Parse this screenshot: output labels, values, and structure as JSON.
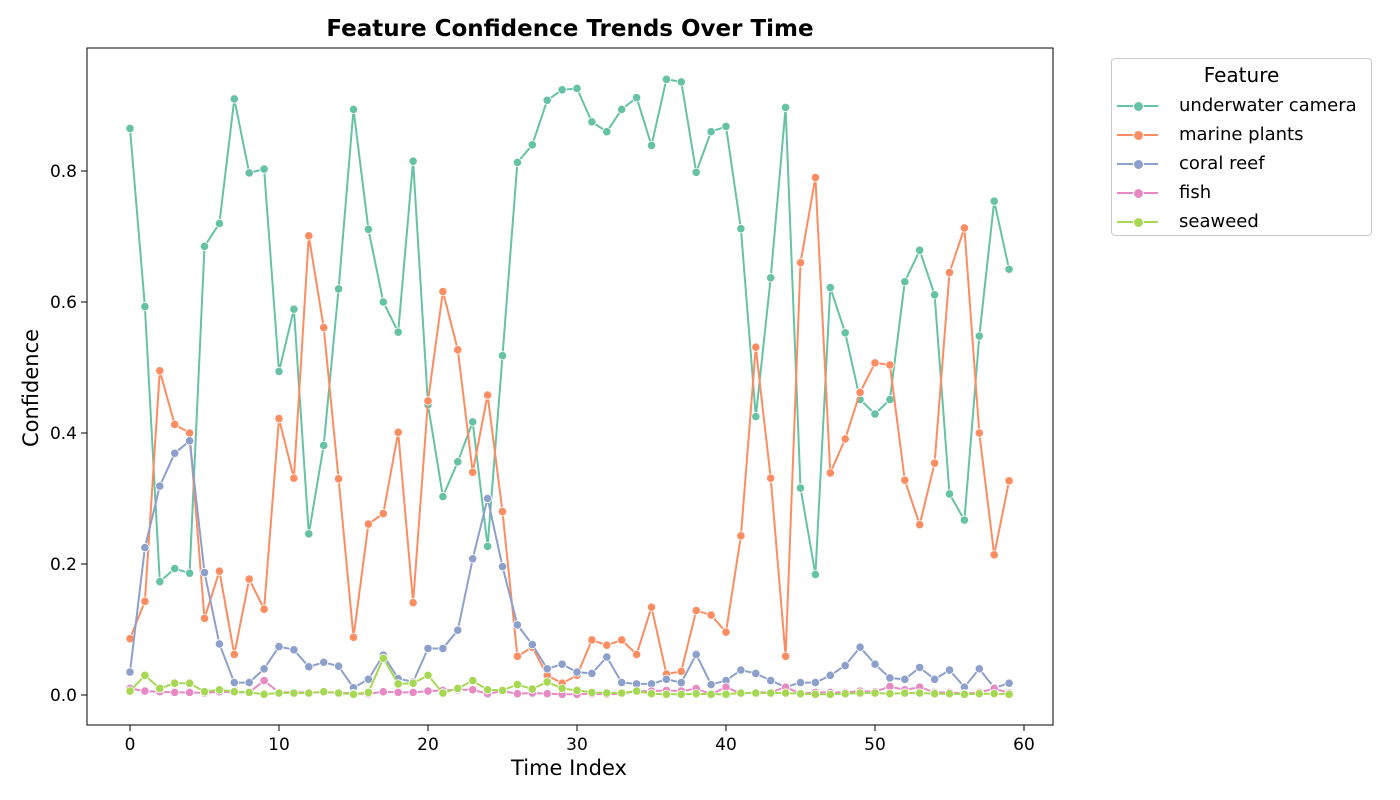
{
  "chart_data": {
    "type": "line",
    "title": "Feature Confidence Trends Over Time",
    "xlabel": "Time Index",
    "ylabel": "Confidence",
    "xlim": [
      -3,
      62
    ],
    "ylim": [
      -0.047,
      0.985
    ],
    "xticks": [
      0,
      10,
      20,
      30,
      40,
      50,
      60
    ],
    "yticks": [
      0.0,
      0.2,
      0.4,
      0.6,
      0.8
    ],
    "grid": false,
    "legend_title": "Feature",
    "legend_position": "upper right, outside plot",
    "x": [
      0,
      1,
      2,
      3,
      4,
      5,
      6,
      7,
      8,
      9,
      10,
      11,
      12,
      13,
      14,
      15,
      16,
      17,
      18,
      19,
      20,
      21,
      22,
      23,
      24,
      25,
      26,
      27,
      28,
      29,
      30,
      31,
      32,
      33,
      34,
      35,
      36,
      37,
      38,
      39,
      40,
      41,
      42,
      43,
      44,
      45,
      46,
      47,
      48,
      49,
      50,
      51,
      52,
      53,
      54,
      55,
      56,
      57,
      58,
      59
    ],
    "series": [
      {
        "name": "underwater camera",
        "color": "#66c2a5",
        "values": [
          0.865,
          0.593,
          0.173,
          0.193,
          0.186,
          0.685,
          0.72,
          0.91,
          0.797,
          0.803,
          0.494,
          0.589,
          0.246,
          0.381,
          0.62,
          0.894,
          0.711,
          0.6,
          0.554,
          0.815,
          0.443,
          0.303,
          0.356,
          0.417,
          0.227,
          0.518,
          0.813,
          0.84,
          0.908,
          0.924,
          0.926,
          0.875,
          0.86,
          0.894,
          0.912,
          0.839,
          0.94,
          0.936,
          0.798,
          0.86,
          0.868,
          0.712,
          0.425,
          0.637,
          0.897,
          0.316,
          0.184,
          0.622,
          0.553,
          0.451,
          0.429,
          0.451,
          0.631,
          0.679,
          0.611,
          0.307,
          0.267,
          0.548,
          0.754,
          0.65
        ]
      },
      {
        "name": "marine plants",
        "color": "#fc8d62",
        "values": [
          0.086,
          0.143,
          0.495,
          0.413,
          0.4,
          0.117,
          0.189,
          0.062,
          0.177,
          0.131,
          0.422,
          0.331,
          0.701,
          0.561,
          0.33,
          0.088,
          0.261,
          0.277,
          0.401,
          0.141,
          0.449,
          0.616,
          0.527,
          0.34,
          0.458,
          0.28,
          0.059,
          0.073,
          0.03,
          0.018,
          0.03,
          0.084,
          0.076,
          0.084,
          0.062,
          0.134,
          0.032,
          0.036,
          0.129,
          0.122,
          0.096,
          0.243,
          0.531,
          0.331,
          0.059,
          0.66,
          0.79,
          0.339,
          0.391,
          0.462,
          0.507,
          0.504,
          0.328,
          0.26,
          0.354,
          0.645,
          0.713,
          0.4,
          0.214,
          0.327
        ]
      },
      {
        "name": "coral reef",
        "color": "#8da0cb",
        "values": [
          0.035,
          0.225,
          0.319,
          0.369,
          0.388,
          0.187,
          0.078,
          0.019,
          0.019,
          0.04,
          0.074,
          0.069,
          0.043,
          0.05,
          0.044,
          0.011,
          0.024,
          0.061,
          0.025,
          0.02,
          0.071,
          0.071,
          0.099,
          0.208,
          0.3,
          0.196,
          0.107,
          0.077,
          0.04,
          0.047,
          0.035,
          0.033,
          0.058,
          0.019,
          0.017,
          0.017,
          0.024,
          0.019,
          0.062,
          0.016,
          0.022,
          0.038,
          0.033,
          0.022,
          0.012,
          0.019,
          0.019,
          0.03,
          0.045,
          0.073,
          0.047,
          0.026,
          0.024,
          0.042,
          0.024,
          0.038,
          0.012,
          0.04,
          0.011,
          0.018
        ]
      },
      {
        "name": "fish",
        "color": "#e78ac3",
        "values": [
          0.01,
          0.006,
          0.005,
          0.004,
          0.004,
          0.003,
          0.005,
          0.004,
          0.004,
          0.022,
          0.004,
          0.004,
          0.004,
          0.004,
          0.004,
          0.002,
          0.002,
          0.005,
          0.004,
          0.004,
          0.006,
          0.007,
          0.008,
          0.008,
          0.002,
          0.006,
          0.002,
          0.003,
          0.002,
          0.001,
          0.001,
          0.002,
          0.001,
          0.002,
          0.006,
          0.006,
          0.007,
          0.006,
          0.01,
          0.001,
          0.012,
          0.002,
          0.004,
          0.004,
          0.012,
          0.002,
          0.004,
          0.004,
          0.004,
          0.006,
          0.005,
          0.013,
          0.008,
          0.012,
          0.004,
          0.004,
          0.002,
          0.004,
          0.01,
          0.003
        ]
      },
      {
        "name": "seaweed",
        "color": "#a6d854",
        "values": [
          0.006,
          0.03,
          0.01,
          0.018,
          0.018,
          0.005,
          0.008,
          0.005,
          0.004,
          0.001,
          0.003,
          0.003,
          0.003,
          0.005,
          0.003,
          0.001,
          0.004,
          0.056,
          0.017,
          0.018,
          0.03,
          0.003,
          0.01,
          0.022,
          0.008,
          0.007,
          0.016,
          0.009,
          0.02,
          0.01,
          0.007,
          0.004,
          0.003,
          0.003,
          0.006,
          0.002,
          0.001,
          0.001,
          0.002,
          0.001,
          0.001,
          0.003,
          0.003,
          0.003,
          0.003,
          0.002,
          0.001,
          0.001,
          0.002,
          0.003,
          0.003,
          0.002,
          0.003,
          0.003,
          0.002,
          0.002,
          0.001,
          0.002,
          0.002,
          0.001
        ]
      }
    ]
  }
}
